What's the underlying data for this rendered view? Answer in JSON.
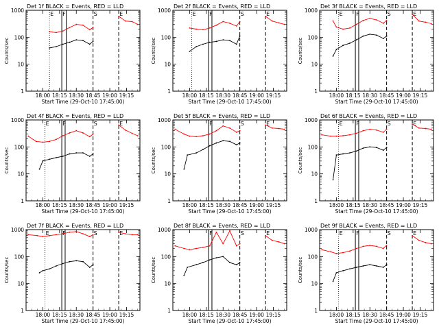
{
  "figure": {
    "background": "#ffffff",
    "events_color": "#000000",
    "lld_color": "#ff0000",
    "start_time_label": "Start Time (29-Oct-10 17:45:00)",
    "ylabel": "Counts/sec",
    "x_ticks": [
      "18:00",
      "18:15",
      "18:30",
      "18:45",
      "19:00",
      "19:15"
    ],
    "y_ticks": [
      "1",
      "10",
      "100",
      "1000"
    ]
  },
  "chart_data": [
    {
      "title": "Det 1f BLACK = Events, RED = LLD",
      "type": "line",
      "xlabel": "Start Time (29-Oct-10 17:45:00)",
      "ylabel": "Counts/sec",
      "x_ticks": [
        "18:00",
        "18:15",
        "18:30",
        "18:45",
        "19:00",
        "19:15"
      ],
      "y_log": true,
      "ylim": [
        1,
        1000
      ],
      "markers": [
        {
          "label": "E",
          "style": "dotted",
          "pos": "18:06"
        },
        {
          "label": "F",
          "style": "solid",
          "pos": "18:17"
        },
        {
          "label": "",
          "style": "solid",
          "pos": "18:21"
        },
        {
          "label": "S",
          "style": "dashed",
          "pos": "18:45"
        },
        {
          "label": "E",
          "style": "dashed",
          "pos": "19:08"
        }
      ],
      "series": [
        {
          "name": "Events",
          "color": "#000000",
          "x": [
            "18:06",
            "18:12",
            "18:18",
            "18:24",
            "18:30",
            "18:36",
            "18:42",
            "18:45",
            "19:08",
            "19:14",
            "19:20",
            "19:25"
          ],
          "values": [
            40,
            45,
            55,
            65,
            80,
            75,
            55,
            70,
            null,
            null,
            null,
            null
          ]
        },
        {
          "name": "LLD",
          "color": "#ff0000",
          "x": [
            "18:06",
            "18:12",
            "18:18",
            "18:24",
            "18:30",
            "18:36",
            "18:42",
            "18:45",
            "19:08",
            "19:14",
            "19:20",
            "19:25"
          ],
          "values": [
            160,
            150,
            170,
            230,
            300,
            280,
            190,
            230,
            600,
            400,
            380,
            300
          ]
        }
      ]
    },
    {
      "title": "Det 2f BLACK = Events, RED = LLD",
      "type": "line",
      "xlabel": "Start Time (29-Oct-10 17:45:00)",
      "ylabel": "Counts/sec",
      "x_ticks": [
        "18:00",
        "18:15",
        "18:30",
        "18:45",
        "19:00",
        "19:15"
      ],
      "y_log": true,
      "ylim": [
        1,
        1000
      ],
      "markers": [
        {
          "label": "E",
          "style": "dotted",
          "pos": "18:02"
        },
        {
          "label": "F",
          "style": "solid",
          "pos": "18:17"
        },
        {
          "label": "",
          "style": "solid",
          "pos": "18:20"
        },
        {
          "label": "S",
          "style": "dashed",
          "pos": "18:45"
        },
        {
          "label": "E",
          "style": "dashed",
          "pos": "19:08"
        }
      ],
      "series": [
        {
          "name": "Events",
          "color": "#000000",
          "x": [
            "18:00",
            "18:06",
            "18:12",
            "18:18",
            "18:24",
            "18:30",
            "18:36",
            "18:42",
            "18:45",
            "19:08",
            "19:14",
            "19:20",
            "19:25"
          ],
          "values": [
            30,
            45,
            55,
            65,
            70,
            80,
            75,
            55,
            110,
            null,
            null,
            null,
            null
          ]
        },
        {
          "name": "LLD",
          "color": "#ff0000",
          "x": [
            "18:00",
            "18:06",
            "18:12",
            "18:18",
            "18:24",
            "18:30",
            "18:36",
            "18:42",
            "18:45",
            "19:08",
            "19:14",
            "19:20",
            "19:25"
          ],
          "values": [
            220,
            200,
            190,
            220,
            280,
            380,
            330,
            260,
            380,
            600,
            400,
            340,
            300
          ]
        }
      ]
    },
    {
      "title": "Det 3f BLACK = Events, RED = LLD",
      "type": "line",
      "xlabel": "Start Time (29-Oct-10 17:45:00)",
      "ylabel": "Counts/sec",
      "x_ticks": [
        "18:00",
        "18:15",
        "18:30",
        "18:45",
        "19:00",
        "19:15"
      ],
      "y_log": true,
      "ylim": [
        1,
        1000
      ],
      "markers": [
        {
          "label": "E",
          "style": "dotted",
          "pos": "18:02"
        },
        {
          "label": "F",
          "style": "solid",
          "pos": "18:17"
        },
        {
          "label": "",
          "style": "solid",
          "pos": "18:20"
        },
        {
          "label": "S",
          "style": "dashed",
          "pos": "18:45"
        },
        {
          "label": "E",
          "style": "dashed",
          "pos": "19:08"
        }
      ],
      "series": [
        {
          "name": "Events",
          "color": "#000000",
          "x": [
            "17:57",
            "18:00",
            "18:06",
            "18:12",
            "18:18",
            "18:24",
            "18:30",
            "18:36",
            "18:42",
            "18:45"
          ],
          "values": [
            20,
            35,
            50,
            60,
            80,
            110,
            130,
            120,
            90,
            110
          ]
        },
        {
          "name": "LLD",
          "color": "#ff0000",
          "x": [
            "17:57",
            "18:00",
            "18:06",
            "18:12",
            "18:18",
            "18:24",
            "18:30",
            "18:36",
            "18:42",
            "18:45",
            "19:08",
            "19:14",
            "19:20",
            "19:25"
          ],
          "values": [
            400,
            240,
            200,
            220,
            300,
            420,
            500,
            440,
            330,
            420,
            700,
            400,
            360,
            320
          ]
        }
      ]
    },
    {
      "title": "Det 4f BLACK = Events, RED = LLD",
      "type": "line",
      "xlabel": "Start Time (29-Oct-10 17:45:00)",
      "ylabel": "Counts/sec",
      "x_ticks": [
        "18:00",
        "18:15",
        "18:30",
        "18:45",
        "19:00",
        "19:15"
      ],
      "y_log": true,
      "ylim": [
        1,
        1000
      ],
      "markers": [
        {
          "label": "E",
          "style": "dotted",
          "pos": "18:02"
        },
        {
          "label": "F",
          "style": "solid",
          "pos": "18:17"
        },
        {
          "label": "",
          "style": "solid",
          "pos": "18:20"
        },
        {
          "label": "S",
          "style": "dashed",
          "pos": "18:45"
        },
        {
          "label": "E",
          "style": "dashed",
          "pos": "19:08"
        }
      ],
      "series": [
        {
          "name": "Events",
          "color": "#000000",
          "x": [
            "17:57",
            "18:00",
            "18:06",
            "18:12",
            "18:18",
            "18:24",
            "18:30",
            "18:36",
            "18:42",
            "18:45"
          ],
          "values": [
            15,
            30,
            35,
            40,
            45,
            55,
            60,
            60,
            45,
            55
          ]
        },
        {
          "name": "LLD",
          "color": "#ff0000",
          "x": [
            "17:47",
            "17:54",
            "18:00",
            "18:06",
            "18:12",
            "18:18",
            "18:24",
            "18:30",
            "18:36",
            "18:42",
            "18:45",
            "19:08",
            "19:14",
            "19:20",
            "19:25"
          ],
          "values": [
            250,
            160,
            150,
            160,
            190,
            260,
            330,
            400,
            330,
            240,
            300,
            650,
            420,
            320,
            260
          ]
        }
      ]
    },
    {
      "title": "Det 5f BLACK = Events, RED = LLD",
      "type": "line",
      "xlabel": "Start Time (29-Oct-10 17:45:00)",
      "ylabel": "Counts/sec",
      "x_ticks": [
        "18:00",
        "18:15",
        "18:30",
        "18:45",
        "19:00",
        "19:15"
      ],
      "y_log": true,
      "ylim": [
        1,
        1000
      ],
      "markers": [
        {
          "label": "F",
          "style": "solid",
          "pos": "18:17"
        },
        {
          "label": "",
          "style": "solid",
          "pos": "18:20"
        },
        {
          "label": "S",
          "style": "dashed",
          "pos": "18:45"
        },
        {
          "label": "E",
          "style": "dashed",
          "pos": "19:08"
        }
      ],
      "series": [
        {
          "name": "Events",
          "color": "#000000",
          "x": [
            "17:55",
            "17:58",
            "18:06",
            "18:12",
            "18:18",
            "18:24",
            "18:30",
            "18:36",
            "18:42",
            "18:45"
          ],
          "values": [
            15,
            50,
            60,
            80,
            110,
            140,
            170,
            160,
            120,
            140
          ]
        },
        {
          "name": "LLD",
          "color": "#ff0000",
          "x": [
            "17:47",
            "17:55",
            "18:00",
            "18:06",
            "18:12",
            "18:18",
            "18:24",
            "18:30",
            "18:36",
            "18:42",
            "18:45",
            "19:08",
            "19:14",
            "19:20",
            "19:25"
          ],
          "values": [
            450,
            300,
            250,
            240,
            260,
            300,
            400,
            600,
            500,
            350,
            400,
            650,
            500,
            480,
            450
          ]
        }
      ]
    },
    {
      "title": "Det 6f BLACK = Events, RED = LLD",
      "type": "line",
      "xlabel": "Start Time (29-Oct-10 17:45:00)",
      "ylabel": "Counts/sec",
      "x_ticks": [
        "18:00",
        "18:15",
        "18:30",
        "18:45",
        "19:00",
        "19:15"
      ],
      "y_log": true,
      "ylim": [
        1,
        1000
      ],
      "markers": [
        {
          "label": "E",
          "style": "dotted",
          "pos": "18:02"
        },
        {
          "label": "F",
          "style": "solid",
          "pos": "18:17"
        },
        {
          "label": "",
          "style": "solid",
          "pos": "18:20"
        },
        {
          "label": "S",
          "style": "dashed",
          "pos": "18:45"
        },
        {
          "label": "E",
          "style": "dashed",
          "pos": "19:08"
        }
      ],
      "series": [
        {
          "name": "Events",
          "color": "#000000",
          "x": [
            "17:57",
            "18:00",
            "18:06",
            "18:12",
            "18:18",
            "18:24",
            "18:30",
            "18:36",
            "18:42",
            "18:45"
          ],
          "values": [
            6,
            50,
            55,
            60,
            70,
            90,
            100,
            95,
            75,
            95
          ]
        },
        {
          "name": "LLD",
          "color": "#ff0000",
          "x": [
            "17:47",
            "17:55",
            "18:00",
            "18:06",
            "18:12",
            "18:18",
            "18:24",
            "18:30",
            "18:36",
            "18:42",
            "18:45",
            "19:08",
            "19:14",
            "19:20",
            "19:25"
          ],
          "values": [
            280,
            250,
            250,
            260,
            280,
            320,
            400,
            450,
            420,
            350,
            450,
            700,
            500,
            480,
            450
          ]
        }
      ]
    },
    {
      "title": "Det 7f BLACK = Events, RED = LLD",
      "type": "line",
      "xlabel": "Start Time (29-Oct-10 17:45:00)",
      "ylabel": "Counts/sec",
      "x_ticks": [
        "18:00",
        "18:15",
        "18:30",
        "18:45",
        "19:00",
        "19:15"
      ],
      "y_log": true,
      "ylim": [
        1,
        1000
      ],
      "markers": [
        {
          "label": "E",
          "style": "dotted",
          "pos": "18:02"
        },
        {
          "label": "F",
          "style": "solid",
          "pos": "18:17"
        },
        {
          "label": "",
          "style": "solid",
          "pos": "18:20"
        },
        {
          "label": "S",
          "style": "dashed",
          "pos": "18:45"
        },
        {
          "label": "E",
          "style": "dashed",
          "pos": "19:08"
        }
      ],
      "series": [
        {
          "name": "Events",
          "color": "#000000",
          "x": [
            "17:57",
            "18:00",
            "18:06",
            "18:12",
            "18:18",
            "18:24",
            "18:30",
            "18:36",
            "18:42",
            "18:45"
          ],
          "values": [
            25,
            30,
            35,
            45,
            55,
            65,
            70,
            65,
            40,
            50
          ]
        },
        {
          "name": "LLD",
          "color": "#ff0000",
          "x": [
            "17:47",
            "17:55",
            "18:00",
            "18:06",
            "18:12",
            "18:18",
            "18:24",
            "18:30",
            "18:36",
            "18:42",
            "18:45",
            "19:08",
            "19:14",
            "19:20",
            "19:25"
          ],
          "values": [
            650,
            600,
            550,
            600,
            650,
            700,
            800,
            850,
            700,
            550,
            650,
            800,
            700,
            650,
            650
          ]
        }
      ]
    },
    {
      "title": "Det 8f BLACK = Events, RED = LLD",
      "type": "line",
      "xlabel": "Start Time (29-Oct-10 17:45:00)",
      "ylabel": "Counts/sec",
      "x_ticks": [
        "18:00",
        "18:15",
        "18:30",
        "18:45",
        "19:00",
        "19:15"
      ],
      "y_log": true,
      "ylim": [
        1,
        1000
      ],
      "markers": [
        {
          "label": "F",
          "style": "solid",
          "pos": "18:17"
        },
        {
          "label": "",
          "style": "solid",
          "pos": "18:20"
        },
        {
          "label": "S",
          "style": "dashed",
          "pos": "18:45"
        },
        {
          "label": "E",
          "style": "dashed",
          "pos": "19:08"
        }
      ],
      "series": [
        {
          "name": "Events",
          "color": "#000000",
          "x": [
            "17:55",
            "17:58",
            "18:06",
            "18:12",
            "18:18",
            "18:24",
            "18:30",
            "18:36",
            "18:42",
            "18:45"
          ],
          "values": [
            20,
            40,
            50,
            60,
            75,
            90,
            100,
            60,
            50,
            60
          ]
        },
        {
          "name": "LLD",
          "color": "#ff0000",
          "x": [
            "17:47",
            "17:55",
            "18:00",
            "18:06",
            "18:12",
            "18:18",
            "18:24",
            "18:30",
            "18:36",
            "18:42",
            "18:45",
            "19:08",
            "19:14",
            "19:20",
            "19:25"
          ],
          "values": [
            250,
            200,
            180,
            200,
            220,
            250,
            800,
            300,
            900,
            250,
            300,
            600,
            400,
            350,
            300
          ]
        }
      ]
    },
    {
      "title": "Det 9f BLACK = Events, RED = LLD",
      "type": "line",
      "xlabel": "Start Time (29-Oct-10 17:45:00)",
      "ylabel": "Counts/sec",
      "x_ticks": [
        "18:00",
        "18:15",
        "18:30",
        "18:45",
        "19:00",
        "19:15"
      ],
      "y_log": true,
      "ylim": [
        1,
        1000
      ],
      "markers": [
        {
          "label": "E",
          "style": "dotted",
          "pos": "18:02"
        },
        {
          "label": "F",
          "style": "solid",
          "pos": "18:17"
        },
        {
          "label": "",
          "style": "solid",
          "pos": "18:20"
        },
        {
          "label": "S",
          "style": "dashed",
          "pos": "18:45"
        },
        {
          "label": "E",
          "style": "dashed",
          "pos": "19:08"
        }
      ],
      "series": [
        {
          "name": "Events",
          "color": "#000000",
          "x": [
            "17:57",
            "18:00",
            "18:06",
            "18:12",
            "18:18",
            "18:24",
            "18:30",
            "18:36",
            "18:42",
            "18:45"
          ],
          "values": [
            12,
            25,
            30,
            35,
            40,
            45,
            50,
            45,
            40,
            50
          ]
        },
        {
          "name": "LLD",
          "color": "#ff0000",
          "x": [
            "17:47",
            "17:55",
            "18:00",
            "18:06",
            "18:12",
            "18:18",
            "18:24",
            "18:30",
            "18:36",
            "18:42",
            "18:45",
            "19:08",
            "19:14",
            "19:20",
            "19:25"
          ],
          "values": [
            180,
            150,
            130,
            140,
            160,
            200,
            240,
            260,
            240,
            200,
            260,
            600,
            400,
            330,
            300
          ]
        }
      ]
    }
  ]
}
